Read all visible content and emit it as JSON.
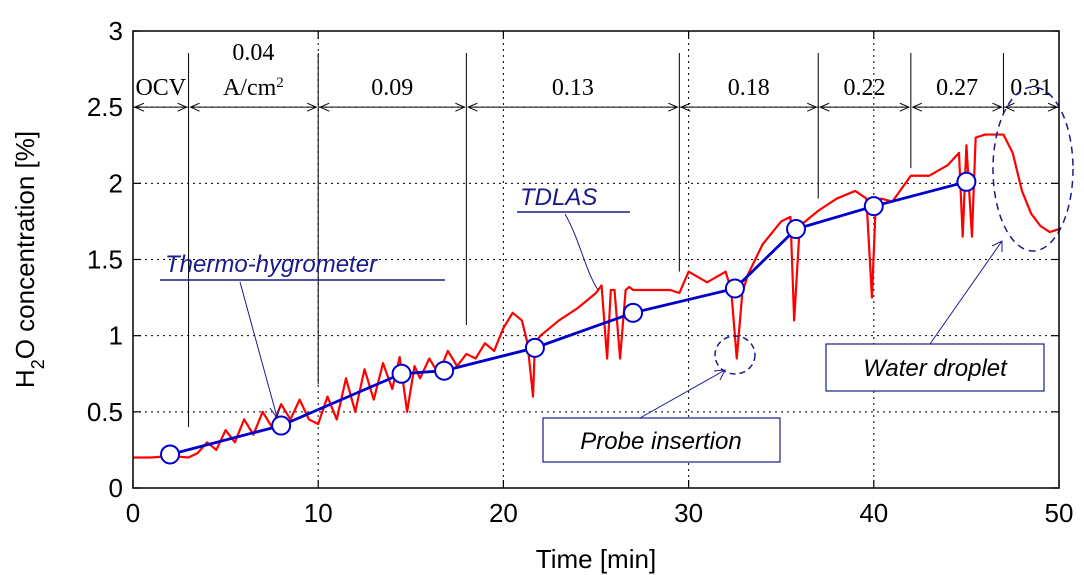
{
  "chart_data": {
    "type": "line",
    "title": "",
    "xlabel": "Time  [min]",
    "ylabel_main": "H",
    "ylabel_sub": "2",
    "ylabel_rest": "O concentration  [%]",
    "xlim": [
      0,
      50
    ],
    "ylim": [
      0,
      3
    ],
    "x_ticks": [
      0,
      10,
      20,
      30,
      40,
      50
    ],
    "y_ticks": [
      0,
      0.5,
      1,
      1.5,
      2,
      2.5,
      3
    ],
    "x_tick_labels": [
      "0",
      "10",
      "20",
      "30",
      "40",
      "50"
    ],
    "y_tick_labels": [
      "0",
      "0.5",
      "1",
      "1.5",
      "2",
      "2.5",
      "3"
    ],
    "grid": true,
    "current_regions": {
      "boundaries": [
        3,
        10,
        18,
        29.5,
        37,
        42,
        47
      ],
      "labels": [
        {
          "text": "OCV",
          "x_start": 0,
          "x_end": 3
        },
        {
          "text": "0.04",
          "text2": "A/cm",
          "sup": "2",
          "x_start": 3,
          "x_end": 10
        },
        {
          "text": "0.09",
          "x_start": 10,
          "x_end": 18
        },
        {
          "text": "0.13",
          "x_start": 18,
          "x_end": 29.5
        },
        {
          "text": "0.18",
          "x_start": 29.5,
          "x_end": 37
        },
        {
          "text": "0.22",
          "x_start": 37,
          "x_end": 42
        },
        {
          "text": "0.27",
          "x_start": 42,
          "x_end": 47
        },
        {
          "text": "0.31",
          "x_start": 47,
          "x_end": 50
        }
      ]
    },
    "series": [
      {
        "name": "TDLAS",
        "color": "#ff0000",
        "x": [
          0,
          1,
          2,
          3,
          3.5,
          4,
          4.5,
          5,
          5.5,
          6,
          6.5,
          7,
          7.5,
          8,
          8.5,
          9,
          9.5,
          10,
          10.5,
          11,
          11.5,
          12,
          12.5,
          13,
          13.5,
          14,
          14.4,
          14.8,
          15.2,
          15.5,
          16,
          16.5,
          17,
          17.5,
          18,
          18.5,
          19,
          19.5,
          20,
          20.5,
          21,
          21.3,
          21.6,
          21.7,
          22,
          23,
          24,
          25,
          25.3,
          25.6,
          25.8,
          26,
          26.3,
          26.6,
          26.8,
          27,
          28,
          29,
          29.5,
          30,
          31,
          32,
          32.3,
          32.6,
          32.9,
          33.2,
          34,
          35,
          35.5,
          35.7,
          36,
          37,
          38,
          39,
          39.6,
          39.9,
          40.1,
          40.4,
          41,
          42,
          43,
          44,
          44.6,
          44.8,
          45,
          45.3,
          45.5,
          46,
          46.5,
          47,
          47.5,
          48,
          48.5,
          49,
          49.5,
          50
        ],
        "y": [
          0.2,
          0.2,
          0.21,
          0.2,
          0.23,
          0.3,
          0.25,
          0.38,
          0.3,
          0.45,
          0.35,
          0.5,
          0.4,
          0.55,
          0.45,
          0.58,
          0.45,
          0.42,
          0.6,
          0.45,
          0.72,
          0.5,
          0.78,
          0.58,
          0.82,
          0.65,
          0.86,
          0.5,
          0.8,
          0.72,
          0.85,
          0.75,
          0.9,
          0.8,
          0.88,
          0.85,
          0.95,
          0.9,
          1.05,
          1.15,
          1.1,
          0.95,
          0.6,
          0.95,
          1.0,
          1.1,
          1.18,
          1.28,
          1.33,
          0.85,
          1.3,
          1.3,
          0.85,
          1.3,
          1.32,
          1.3,
          1.3,
          1.3,
          1.28,
          1.42,
          1.35,
          1.42,
          1.3,
          0.85,
          1.28,
          1.4,
          1.6,
          1.75,
          1.78,
          1.1,
          1.72,
          1.82,
          1.9,
          1.95,
          1.9,
          1.25,
          1.85,
          1.9,
          1.88,
          2.05,
          2.05,
          2.12,
          2.2,
          1.65,
          2.25,
          1.65,
          2.3,
          2.32,
          2.32,
          2.32,
          2.2,
          1.95,
          1.8,
          1.72,
          1.68,
          1.7
        ]
      },
      {
        "name": "Thermo-hygrometer",
        "color": "#0000cc",
        "x": [
          2,
          8,
          14.5,
          16.8,
          21.7,
          27,
          32.5,
          35.8,
          40,
          45
        ],
        "y": [
          0.22,
          0.41,
          0.75,
          0.77,
          0.92,
          1.15,
          1.31,
          1.7,
          1.85,
          2.01
        ]
      }
    ],
    "annotations": [
      {
        "text": "TDLAS",
        "underline": true,
        "box": false
      },
      {
        "text": "Thermo-hygrometer",
        "underline": true,
        "box": false
      },
      {
        "text": "Probe insertion",
        "underline": false,
        "box": true
      },
      {
        "text": "Water droplet",
        "underline": false,
        "box": true
      }
    ]
  }
}
